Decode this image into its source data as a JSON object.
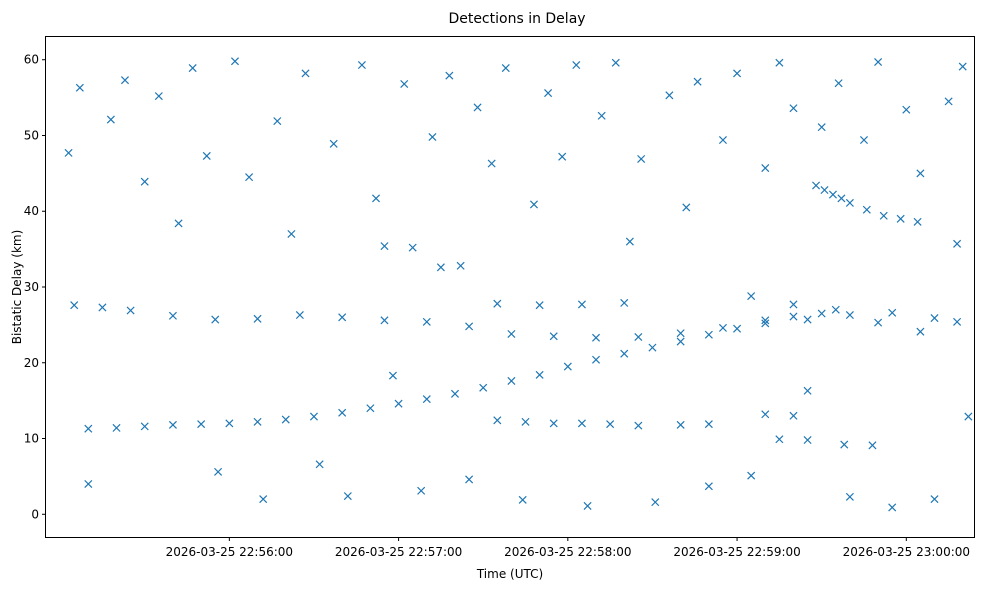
{
  "chart_data": {
    "type": "scatter",
    "title": "Detections in Delay",
    "xlabel": "Time (UTC)",
    "ylabel": "Bistatic Delay (km)",
    "marker": "x",
    "color": "#1f77b4",
    "grid": false,
    "xlim": [
      "2026-03-25 22:54:55",
      "2026-03-25 23:00:24"
    ],
    "ylim": [
      -3,
      63
    ],
    "xticks": [
      "2026-03-25 22:56:00",
      "2026-03-25 22:57:00",
      "2026-03-25 22:58:00",
      "2026-03-25 22:59:00",
      "2026-03-25 23:00:00"
    ],
    "yticks": [
      0,
      10,
      20,
      30,
      40,
      50,
      60
    ],
    "series": [
      {
        "points": [
          [
            "2026-03-25 22:55:10",
            11.3
          ],
          [
            "2026-03-25 22:55:20",
            11.4
          ],
          [
            "2026-03-25 22:55:30",
            11.6
          ],
          [
            "2026-03-25 22:55:40",
            11.8
          ],
          [
            "2026-03-25 22:55:50",
            11.9
          ],
          [
            "2026-03-25 22:56:00",
            12.0
          ],
          [
            "2026-03-25 22:56:10",
            12.2
          ],
          [
            "2026-03-25 22:56:20",
            12.5
          ],
          [
            "2026-03-25 22:56:30",
            12.9
          ],
          [
            "2026-03-25 22:56:40",
            13.4
          ],
          [
            "2026-03-25 22:56:50",
            14.0
          ],
          [
            "2026-03-25 22:57:00",
            14.6
          ],
          [
            "2026-03-25 22:57:10",
            15.2
          ],
          [
            "2026-03-25 22:57:20",
            15.9
          ],
          [
            "2026-03-25 22:57:30",
            16.7
          ],
          [
            "2026-03-25 22:57:40",
            17.6
          ],
          [
            "2026-03-25 22:57:50",
            18.4
          ],
          [
            "2026-03-25 22:58:00",
            19.5
          ],
          [
            "2026-03-25 22:58:10",
            20.4
          ],
          [
            "2026-03-25 22:58:20",
            21.2
          ],
          [
            "2026-03-25 22:58:30",
            22.0
          ],
          [
            "2026-03-25 22:58:40",
            22.8
          ],
          [
            "2026-03-25 22:58:50",
            23.7
          ],
          [
            "2026-03-25 22:59:00",
            24.5
          ],
          [
            "2026-03-25 22:59:10",
            25.6
          ],
          [
            "2026-03-25 22:59:20",
            26.1
          ],
          [
            "2026-03-25 22:59:30",
            26.5
          ],
          [
            "2026-03-25 22:55:05",
            27.6
          ],
          [
            "2026-03-25 22:55:15",
            27.3
          ],
          [
            "2026-03-25 22:55:25",
            26.9
          ],
          [
            "2026-03-25 22:55:40",
            26.2
          ],
          [
            "2026-03-25 22:55:55",
            25.7
          ],
          [
            "2026-03-25 22:56:10",
            25.8
          ],
          [
            "2026-03-25 22:56:25",
            26.3
          ],
          [
            "2026-03-25 22:56:40",
            26.0
          ],
          [
            "2026-03-25 22:56:55",
            25.6
          ],
          [
            "2026-03-25 22:57:10",
            25.4
          ],
          [
            "2026-03-25 22:57:25",
            24.8
          ],
          [
            "2026-03-25 22:57:40",
            23.8
          ],
          [
            "2026-03-25 22:57:55",
            23.5
          ],
          [
            "2026-03-25 22:58:10",
            23.3
          ],
          [
            "2026-03-25 22:58:25",
            23.4
          ],
          [
            "2026-03-25 22:58:40",
            23.9
          ],
          [
            "2026-03-25 22:58:55",
            24.6
          ],
          [
            "2026-03-25 22:59:10",
            25.2
          ],
          [
            "2026-03-25 22:59:25",
            25.7
          ],
          [
            "2026-03-25 22:59:40",
            26.3
          ],
          [
            "2026-03-25 22:59:55",
            26.6
          ],
          [
            "2026-03-25 23:00:10",
            25.9
          ],
          [
            "2026-03-25 23:00:18",
            25.4
          ],
          [
            "2026-03-25 22:57:35",
            27.8
          ],
          [
            "2026-03-25 22:57:50",
            27.6
          ],
          [
            "2026-03-25 22:58:05",
            27.7
          ],
          [
            "2026-03-25 22:58:20",
            27.9
          ],
          [
            "2026-03-25 22:59:05",
            28.8
          ],
          [
            "2026-03-25 22:59:20",
            27.7
          ],
          [
            "2026-03-25 22:59:35",
            27.0
          ],
          [
            "2026-03-25 22:59:50",
            25.3
          ],
          [
            "2026-03-25 23:00:05",
            24.1
          ],
          [
            "2026-03-25 22:59:28",
            43.4
          ],
          [
            "2026-03-25 22:59:31",
            42.8
          ],
          [
            "2026-03-25 22:59:34",
            42.2
          ],
          [
            "2026-03-25 22:59:37",
            41.7
          ],
          [
            "2026-03-25 22:59:40",
            41.1
          ],
          [
            "2026-03-25 22:59:46",
            40.2
          ],
          [
            "2026-03-25 22:59:52",
            39.4
          ],
          [
            "2026-03-25 22:59:58",
            39.0
          ],
          [
            "2026-03-25 23:00:04",
            38.6
          ],
          [
            "2026-03-25 22:57:35",
            12.4
          ],
          [
            "2026-03-25 22:57:45",
            12.2
          ],
          [
            "2026-03-25 22:57:55",
            12.0
          ],
          [
            "2026-03-25 22:58:05",
            12.0
          ],
          [
            "2026-03-25 22:58:15",
            11.9
          ],
          [
            "2026-03-25 22:58:25",
            11.7
          ],
          [
            "2026-03-25 22:58:40",
            11.8
          ],
          [
            "2026-03-25 22:58:50",
            11.9
          ],
          [
            "2026-03-25 22:59:10",
            13.2
          ],
          [
            "2026-03-25 22:59:20",
            13.0
          ],
          [
            "2026-03-25 22:59:15",
            9.9
          ],
          [
            "2026-03-25 22:59:25",
            9.8
          ],
          [
            "2026-03-25 22:59:38",
            9.2
          ],
          [
            "2026-03-25 22:59:48",
            9.1
          ],
          [
            "2026-03-25 22:57:15",
            32.6
          ],
          [
            "2026-03-25 22:57:22",
            32.8
          ],
          [
            "2026-03-25 22:56:55",
            35.4
          ],
          [
            "2026-03-25 22:57:05",
            35.2
          ],
          [
            "2026-03-25 22:55:03",
            47.7
          ],
          [
            "2026-03-25 22:55:07",
            56.3
          ],
          [
            "2026-03-25 22:55:10",
            4.0
          ],
          [
            "2026-03-25 22:55:18",
            52.1
          ],
          [
            "2026-03-25 22:55:23",
            57.3
          ],
          [
            "2026-03-25 22:55:30",
            43.9
          ],
          [
            "2026-03-25 22:55:35",
            55.2
          ],
          [
            "2026-03-25 22:55:42",
            38.4
          ],
          [
            "2026-03-25 22:55:47",
            58.9
          ],
          [
            "2026-03-25 22:55:52",
            47.3
          ],
          [
            "2026-03-25 22:55:56",
            5.6
          ],
          [
            "2026-03-25 22:56:02",
            59.8
          ],
          [
            "2026-03-25 22:56:07",
            44.5
          ],
          [
            "2026-03-25 22:56:12",
            2.0
          ],
          [
            "2026-03-25 22:56:17",
            51.9
          ],
          [
            "2026-03-25 22:56:22",
            37.0
          ],
          [
            "2026-03-25 22:56:27",
            58.2
          ],
          [
            "2026-03-25 22:56:32",
            6.6
          ],
          [
            "2026-03-25 22:56:37",
            48.9
          ],
          [
            "2026-03-25 22:56:42",
            2.4
          ],
          [
            "2026-03-25 22:56:47",
            59.3
          ],
          [
            "2026-03-25 22:56:52",
            41.7
          ],
          [
            "2026-03-25 22:56:58",
            18.3
          ],
          [
            "2026-03-25 22:57:02",
            56.8
          ],
          [
            "2026-03-25 22:57:08",
            3.1
          ],
          [
            "2026-03-25 22:57:12",
            49.8
          ],
          [
            "2026-03-25 22:57:18",
            57.9
          ],
          [
            "2026-03-25 22:57:25",
            4.6
          ],
          [
            "2026-03-25 22:57:28",
            53.7
          ],
          [
            "2026-03-25 22:57:33",
            46.3
          ],
          [
            "2026-03-25 22:57:38",
            58.9
          ],
          [
            "2026-03-25 22:57:44",
            1.9
          ],
          [
            "2026-03-25 22:57:48",
            40.9
          ],
          [
            "2026-03-25 22:57:53",
            55.6
          ],
          [
            "2026-03-25 22:57:58",
            47.2
          ],
          [
            "2026-03-25 22:58:03",
            59.3
          ],
          [
            "2026-03-25 22:58:07",
            1.1
          ],
          [
            "2026-03-25 22:58:12",
            52.6
          ],
          [
            "2026-03-25 22:58:17",
            59.6
          ],
          [
            "2026-03-25 22:58:22",
            36.0
          ],
          [
            "2026-03-25 22:58:26",
            46.9
          ],
          [
            "2026-03-25 22:58:31",
            1.6
          ],
          [
            "2026-03-25 22:58:36",
            55.3
          ],
          [
            "2026-03-25 22:58:42",
            40.5
          ],
          [
            "2026-03-25 22:58:46",
            57.1
          ],
          [
            "2026-03-25 22:58:50",
            3.7
          ],
          [
            "2026-03-25 22:58:55",
            49.4
          ],
          [
            "2026-03-25 22:59:00",
            58.2
          ],
          [
            "2026-03-25 22:59:05",
            5.1
          ],
          [
            "2026-03-25 22:59:10",
            45.7
          ],
          [
            "2026-03-25 22:59:15",
            59.6
          ],
          [
            "2026-03-25 22:59:20",
            53.6
          ],
          [
            "2026-03-25 22:59:25",
            16.3
          ],
          [
            "2026-03-25 22:59:30",
            51.1
          ],
          [
            "2026-03-25 22:59:36",
            56.9
          ],
          [
            "2026-03-25 22:59:40",
            2.3
          ],
          [
            "2026-03-25 22:59:45",
            49.4
          ],
          [
            "2026-03-25 22:59:50",
            59.7
          ],
          [
            "2026-03-25 22:59:55",
            0.9
          ],
          [
            "2026-03-25 23:00:00",
            53.4
          ],
          [
            "2026-03-25 23:00:05",
            45.0
          ],
          [
            "2026-03-25 23:00:10",
            2.0
          ],
          [
            "2026-03-25 23:00:15",
            54.5
          ],
          [
            "2026-03-25 23:00:20",
            59.1
          ],
          [
            "2026-03-25 23:00:22",
            12.9
          ],
          [
            "2026-03-25 23:00:18",
            35.7
          ]
        ]
      }
    ]
  }
}
